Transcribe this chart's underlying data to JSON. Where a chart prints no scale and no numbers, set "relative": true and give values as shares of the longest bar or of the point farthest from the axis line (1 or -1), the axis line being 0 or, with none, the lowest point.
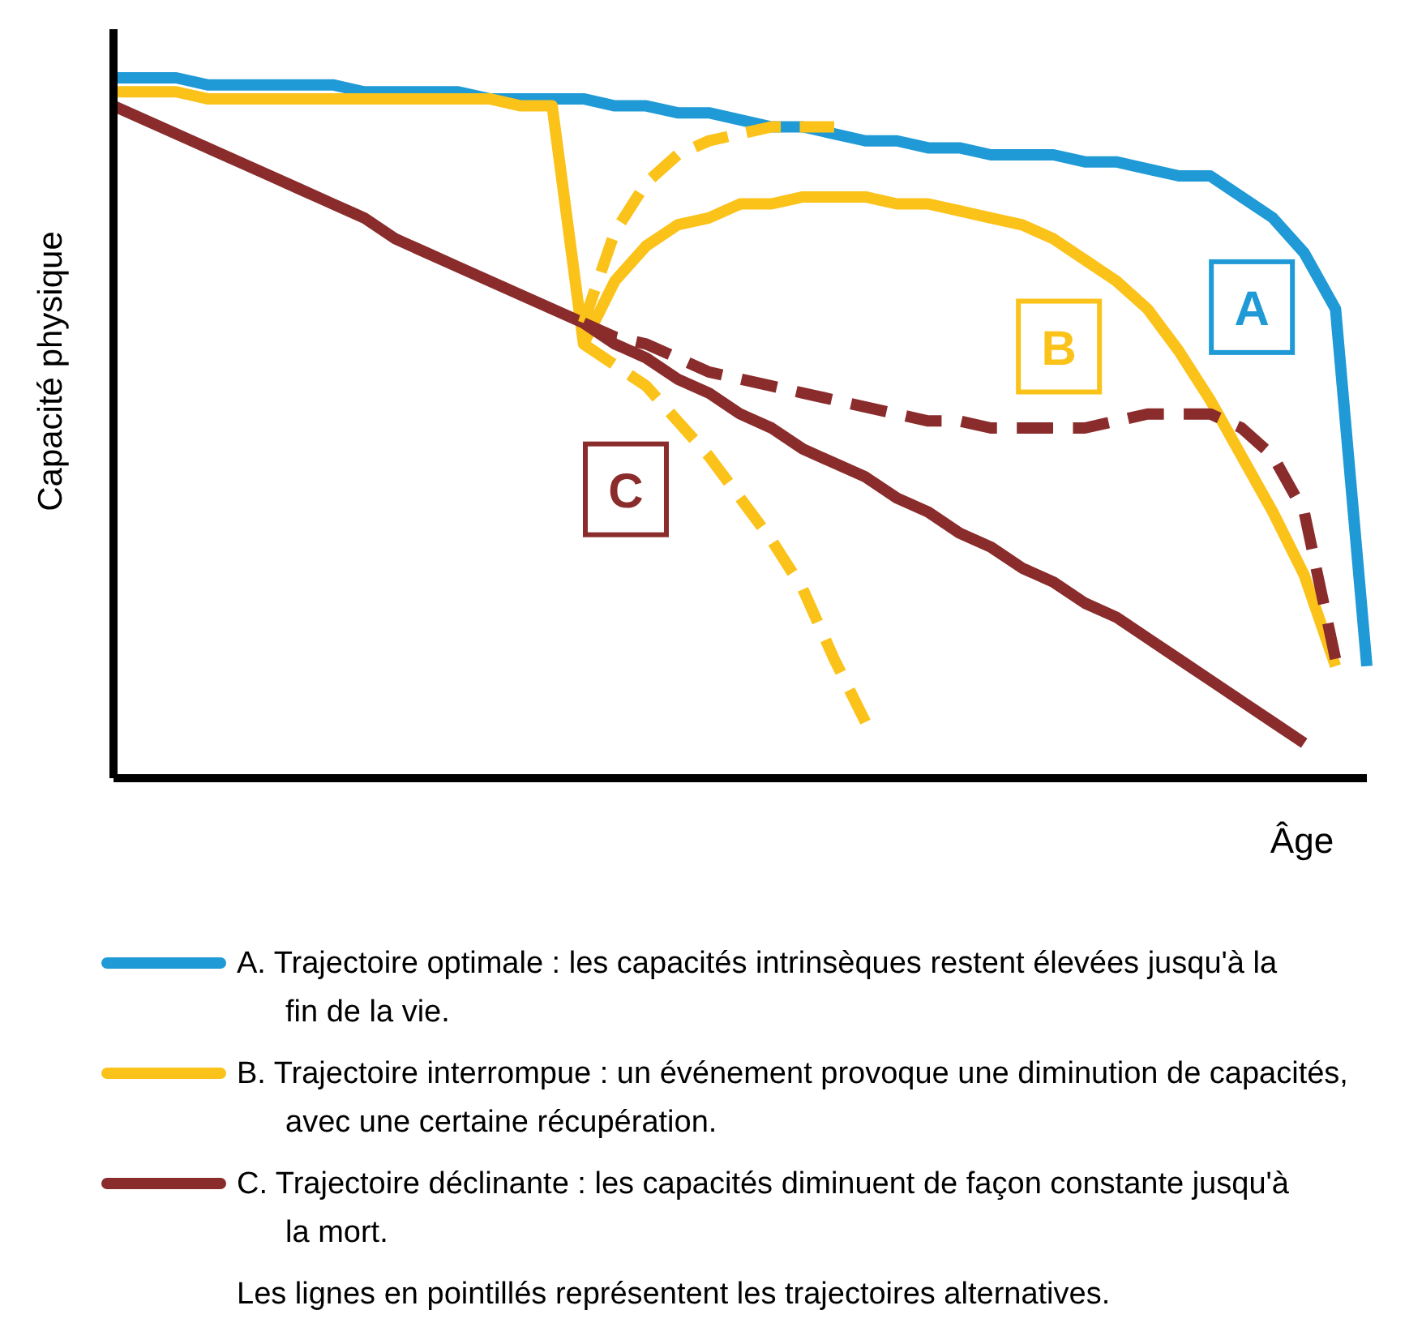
{
  "chart_data": {
    "type": "line",
    "relative": true,
    "ylabel": "Capacité physique",
    "xlabel": "Âge",
    "legend": "bottom",
    "marker": "none",
    "categories": [
      null,
      null,
      null,
      null,
      null,
      null,
      null,
      null,
      null,
      null,
      null,
      null,
      null,
      null,
      null,
      null,
      null,
      null,
      null,
      null,
      null,
      null,
      null,
      null,
      null,
      null,
      null,
      null,
      null,
      null,
      null,
      null,
      null,
      null,
      null,
      null,
      null,
      null,
      null,
      null,
      null
    ],
    "series": [
      {
        "name": "A.  Trajectoire optimale : les capacités intrinsèques restent élevées jusqu'à la fin de la vie.",
        "color": "#1f9ad6",
        "line_style": "solid",
        "values": [
          1,
          1,
          1,
          0.99,
          0.99,
          0.99,
          0.99,
          0.99,
          0.98,
          0.98,
          0.98,
          0.98,
          0.97,
          0.97,
          0.97,
          0.97,
          0.96,
          0.96,
          0.95,
          0.95,
          0.94,
          0.93,
          0.93,
          0.92,
          0.91,
          0.91,
          0.9,
          0.9,
          0.89,
          0.89,
          0.89,
          0.88,
          0.88,
          0.87,
          0.86,
          0.86,
          0.83,
          0.8,
          0.75,
          0.67,
          0.16
        ]
      },
      {
        "name": "B.  Trajectoire interrompue : un événement provoque une diminution de capacités, avec une certaine récupération.",
        "color": "#fbc21a",
        "line_style": "solid",
        "values": [
          0.98,
          0.98,
          0.98,
          0.97,
          0.97,
          0.97,
          0.97,
          0.97,
          0.97,
          0.97,
          0.97,
          0.97,
          0.97,
          0.96,
          0.96,
          0.62,
          0.71,
          0.76,
          0.79,
          0.8,
          0.82,
          0.82,
          0.83,
          0.83,
          0.83,
          0.82,
          0.82,
          0.81,
          0.8,
          0.79,
          0.77,
          0.74,
          0.71,
          0.67,
          0.61,
          0.54,
          0.46,
          0.38,
          0.29,
          0.16,
          null
        ]
      },
      {
        "name": "C.  Trajectoire déclinante : les capacités diminuent de façon constante jusqu'à la mort.",
        "color": "#8b2c2c",
        "line_style": "solid",
        "values": [
          0.96,
          0.94,
          0.92,
          0.9,
          0.88,
          0.86,
          0.84,
          0.82,
          0.8,
          0.77,
          0.75,
          0.73,
          0.71,
          0.69,
          0.67,
          0.65,
          0.62,
          0.6,
          0.57,
          0.55,
          0.52,
          0.5,
          0.47,
          0.45,
          0.43,
          0.4,
          0.38,
          0.35,
          0.33,
          0.3,
          0.28,
          0.25,
          0.23,
          0.2,
          0.17,
          0.14,
          0.11,
          0.08,
          0.05,
          null,
          null
        ]
      },
      {
        "color": "#fbc21a",
        "line_style": "dashed",
        "values": [
          null,
          null,
          null,
          null,
          null,
          null,
          null,
          null,
          null,
          null,
          null,
          null,
          null,
          null,
          null,
          0.65,
          0.78,
          0.85,
          0.89,
          0.91,
          0.92,
          0.93,
          0.93,
          0.93,
          null,
          null,
          null,
          null,
          null,
          null,
          null,
          null,
          null,
          null,
          null,
          null,
          null,
          null,
          null,
          null,
          null
        ]
      },
      {
        "color": "#fbc21a",
        "line_style": "dashed",
        "values": [
          null,
          null,
          null,
          null,
          null,
          null,
          null,
          null,
          null,
          null,
          null,
          null,
          null,
          null,
          null,
          0.62,
          0.59,
          0.56,
          0.51,
          0.46,
          0.4,
          0.34,
          0.27,
          0.17,
          0.08,
          null,
          null,
          null,
          null,
          null,
          null,
          null,
          null,
          null,
          null,
          null,
          null,
          null,
          null,
          null,
          null
        ]
      },
      {
        "color": "#8b2c2c",
        "line_style": "dashed",
        "values": [
          null,
          null,
          null,
          null,
          null,
          null,
          null,
          null,
          null,
          null,
          null,
          null,
          null,
          null,
          null,
          0.65,
          0.63,
          0.62,
          0.6,
          0.58,
          0.57,
          0.56,
          0.55,
          0.54,
          0.53,
          0.52,
          0.51,
          0.51,
          0.5,
          0.5,
          0.5,
          0.5,
          0.51,
          0.52,
          0.52,
          0.52,
          0.5,
          0.46,
          0.38,
          0.17,
          null
        ]
      }
    ],
    "annotations": [
      "A",
      "B",
      "C",
      "Les lignes en pointillés représentent les trajectoires alternatives."
    ]
  }
}
